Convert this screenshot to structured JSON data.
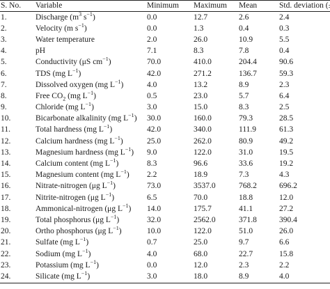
{
  "table": {
    "headers": [
      "S. No.",
      "Variable",
      "Minimum",
      "Maximum",
      "Mean",
      "Std. deviation (±)"
    ],
    "rows": [
      {
        "sno": "1.",
        "var": "Discharge (m<sup>3</sup> s<sup>−1</sup>)",
        "min": "0.0",
        "max": "12.7",
        "mean": "2.6",
        "sd": "2.4"
      },
      {
        "sno": "2.",
        "var": "Velocity (m s<sup>−1</sup>)",
        "min": "0.0",
        "max": "1.3",
        "mean": "0.4",
        "sd": "0.3"
      },
      {
        "sno": "3.",
        "var": "Water temperature",
        "min": "2.0",
        "max": "26.0",
        "mean": "10.9",
        "sd": "5.5"
      },
      {
        "sno": "4.",
        "var": "pH",
        "min": "7.1",
        "max": "8.3",
        "mean": "7.8",
        "sd": "0.4"
      },
      {
        "sno": "5.",
        "var": "Conductivity (μS cm<sup>−1</sup>)",
        "min": "70.0",
        "max": "410.0",
        "mean": "204.4",
        "sd": "90.6"
      },
      {
        "sno": "6.",
        "var": "TDS (mg L<sup>−1</sup>)",
        "min": "42.0",
        "max": "271.2",
        "mean": "136.7",
        "sd": "59.3"
      },
      {
        "sno": "7.",
        "var": "Dissolved oxygen (mg L<sup>−1</sup>)",
        "min": "4.0",
        "max": "13.2",
        "mean": "8.9",
        "sd": "2.3"
      },
      {
        "sno": "8.",
        "var": "Free CO<sub>2</sub> (mg L<sup>−1</sup>)",
        "min": "0.5",
        "max": "23.0",
        "mean": "5.7",
        "sd": "6.4"
      },
      {
        "sno": "9.",
        "var": "Chloride (mg L<sup>−1</sup>)",
        "min": "3.0",
        "max": "15.0",
        "mean": "8.3",
        "sd": "2.5"
      },
      {
        "sno": "10.",
        "var": "Bicarbonate alkalinity (mg L<sup>−1</sup>)",
        "min": "30.0",
        "max": "160.0",
        "mean": "79.3",
        "sd": "28.5"
      },
      {
        "sno": "11.",
        "var": "Total hardness (mg L<sup>−1</sup>)",
        "min": "42.0",
        "max": "340.0",
        "mean": "111.9",
        "sd": "61.3"
      },
      {
        "sno": "12.",
        "var": "Calcium hardness (mg L<sup>−1</sup>)",
        "min": "25.0",
        "max": "262.0",
        "mean": "80.9",
        "sd": "49.2"
      },
      {
        "sno": "13.",
        "var": "Magnesium hardness (mg L<sup>−1</sup>)",
        "min": "9.0",
        "max": "122.0",
        "mean": "31.0",
        "sd": "19.5"
      },
      {
        "sno": "14.",
        "var": "Calcium content (mg L<sup>−1</sup>)",
        "min": "8.3",
        "max": "96.6",
        "mean": "33.6",
        "sd": "19.2"
      },
      {
        "sno": "15.",
        "var": "Magnesium content (mg L<sup>−1</sup>)",
        "min": "2.2",
        "max": "18.9",
        "mean": "7.3",
        "sd": "4.3"
      },
      {
        "sno": "16.",
        "var": "Nitrate-nitrogen (μg L<sup>−1</sup>)",
        "min": "73.0",
        "max": "3537.0",
        "mean": "768.2",
        "sd": "696.2"
      },
      {
        "sno": "17.",
        "var": "Nitrite-nitrogen (μg L<sup>−1</sup>)",
        "min": "6.5",
        "max": "70.0",
        "mean": "18.8",
        "sd": "12.0"
      },
      {
        "sno": "18.",
        "var": "Ammonical-nitrogen (μg L<sup>−1</sup>)",
        "min": "14.0",
        "max": "175.7",
        "mean": "41.1",
        "sd": "27.2"
      },
      {
        "sno": "19.",
        "var": "Total phosphorus (μg L<sup>−1</sup>)",
        "min": "32.0",
        "max": "2562.0",
        "mean": "371.8",
        "sd": "390.4"
      },
      {
        "sno": "20.",
        "var": "Ortho phosphorus (μg L<sup>−1</sup>)",
        "min": "10.0",
        "max": "122.0",
        "mean": "51.0",
        "sd": "26.0"
      },
      {
        "sno": "21.",
        "var": "Sulfate (mg L<sup>−1</sup>)",
        "min": "0.7",
        "max": "25.0",
        "mean": "9.7",
        "sd": "6.6"
      },
      {
        "sno": "22.",
        "var": "Sodium (mg L<sup>−1</sup>)",
        "min": "4.0",
        "max": "68.0",
        "mean": "22.7",
        "sd": "15.8"
      },
      {
        "sno": "23.",
        "var": "Potassium (mg L<sup>−1</sup>)",
        "min": "0.0",
        "max": "12.0",
        "mean": "2.3",
        "sd": "2.2"
      },
      {
        "sno": "24.",
        "var": "Silicate (mg L<sup>−1</sup>)",
        "min": "3.0",
        "max": "18.0",
        "mean": "8.9",
        "sd": "4.0"
      }
    ]
  }
}
